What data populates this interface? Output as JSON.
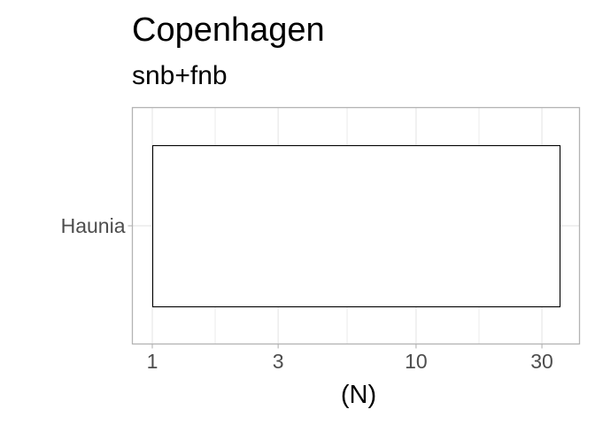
{
  "chart_data": {
    "type": "bar",
    "title": "Copenhagen",
    "subtitle": "snb+fnb",
    "xlabel": "(N)",
    "ylabel": "",
    "x_scale": "log",
    "xlim": [
      1,
      35
    ],
    "x_ticks": [
      1,
      3,
      10,
      30
    ],
    "x_tick_labels": [
      "1",
      "3",
      "10",
      "30"
    ],
    "categories": [
      "Haunia"
    ],
    "values": [
      35
    ],
    "baseline": 1,
    "bar_fill": "#ffffff",
    "bar_outline": "#000000",
    "grid": true,
    "panel_border": "#b3b3b3",
    "grid_color": "#ebebeb",
    "legend": "none"
  }
}
